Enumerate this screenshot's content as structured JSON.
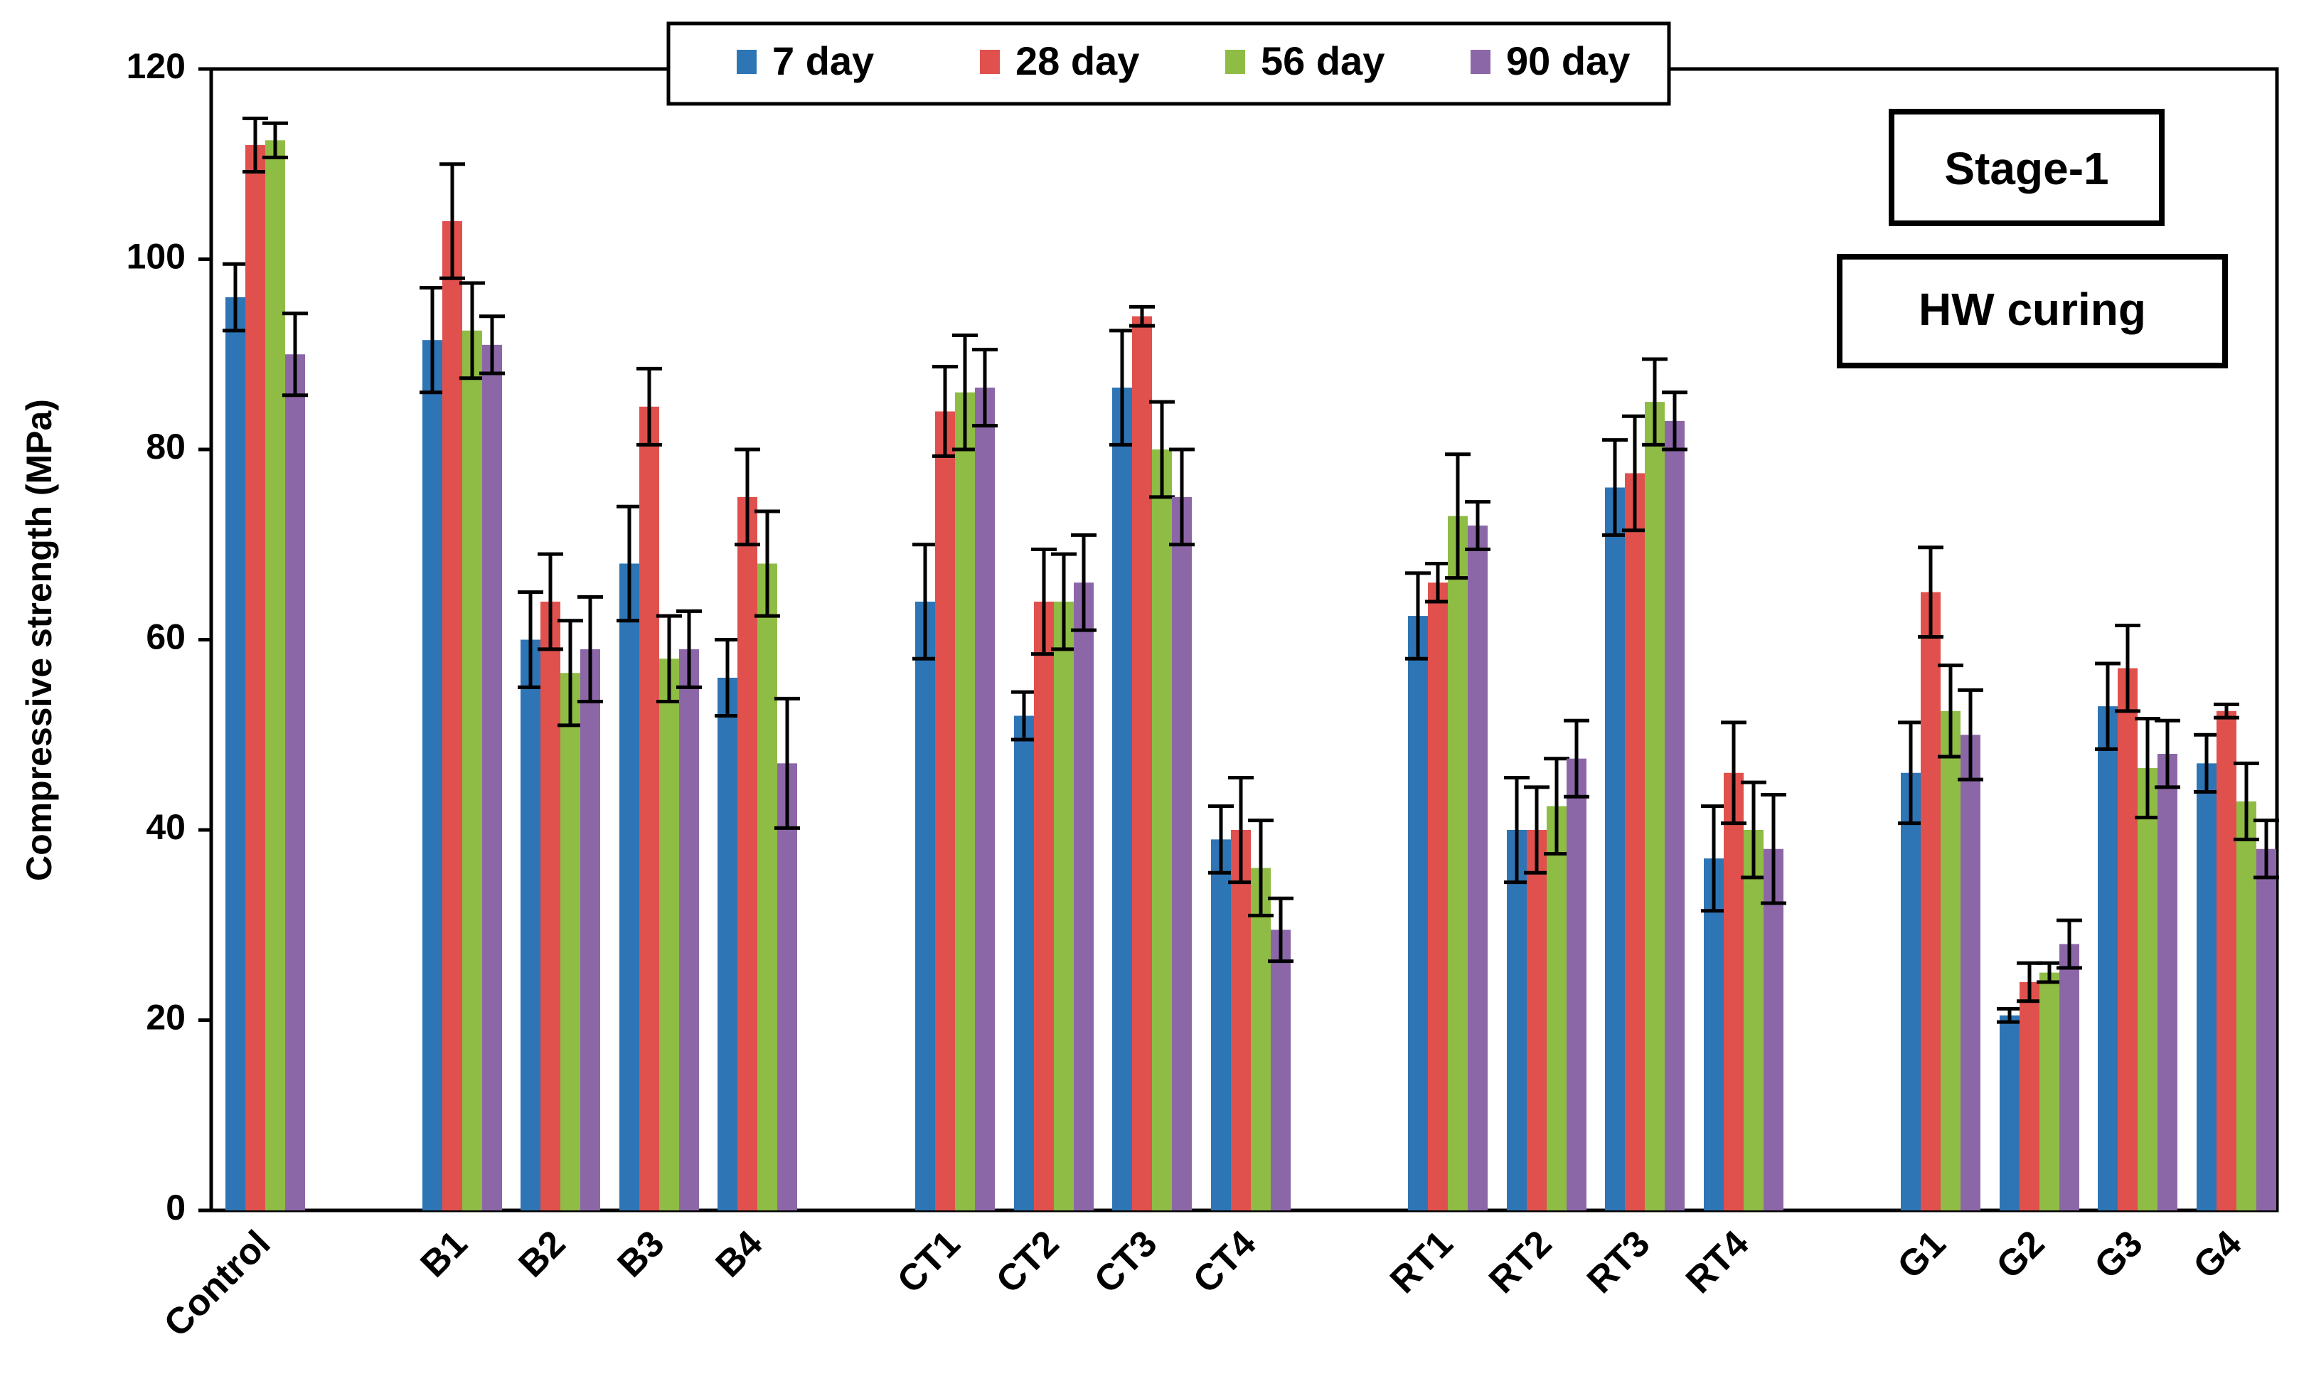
{
  "chart_data": {
    "type": "bar",
    "title": "",
    "xlabel": "",
    "ylabel": "Compressive strength (MPa)",
    "ylim": [
      0,
      120
    ],
    "yticks": [
      0,
      20,
      40,
      60,
      80,
      100,
      120
    ],
    "grid": false,
    "legend_position": "top-center",
    "annotations": [
      "Stage-1",
      "HW curing"
    ],
    "categories": [
      "Control",
      "B1",
      "B2",
      "B3",
      "B4",
      "CT1",
      "CT2",
      "CT3",
      "CT4",
      "RT1",
      "RT2",
      "RT3",
      "RT4",
      "G1",
      "G2",
      "G3",
      "G4"
    ],
    "series": [
      {
        "name": "7 day",
        "color": "#2E75B6",
        "values": [
          96,
          91.5,
          60,
          68,
          56,
          64,
          52,
          86.5,
          39,
          62.5,
          40,
          76,
          37,
          46,
          20.5,
          53,
          47
        ],
        "errors": [
          3.5,
          5.5,
          5,
          6,
          4,
          6,
          2.5,
          6,
          3.5,
          4.5,
          5.5,
          5,
          5.5,
          5.3,
          0.7,
          4.5,
          3
        ]
      },
      {
        "name": "28 day",
        "color": "#E0514E",
        "values": [
          112,
          104,
          64,
          84.5,
          75,
          84,
          64,
          94,
          40,
          66,
          40,
          77.5,
          46,
          65,
          24,
          57,
          52.5
        ],
        "errors": [
          2.8,
          6,
          5,
          4,
          5,
          4.7,
          5.5,
          1,
          5.5,
          2,
          4.5,
          6,
          5.3,
          4.7,
          2,
          4.5,
          0.7
        ]
      },
      {
        "name": "56 day",
        "color": "#8FBC45",
        "values": [
          112.5,
          92.5,
          56.5,
          58,
          68,
          86,
          64,
          80,
          36,
          73,
          42.5,
          85,
          40,
          52.5,
          25,
          46.5,
          43
        ],
        "errors": [
          1.8,
          5,
          5.5,
          4.5,
          5.5,
          6,
          5,
          5,
          5,
          6.5,
          5,
          4.5,
          5,
          4.8,
          1,
          5.2,
          4
        ]
      },
      {
        "name": "90 day",
        "color": "#8C67A8",
        "values": [
          90,
          91,
          59,
          59,
          47,
          86.5,
          66,
          75,
          29.5,
          72,
          47.5,
          83,
          38,
          50,
          28,
          48,
          38
        ],
        "errors": [
          4.3,
          3,
          5.5,
          4,
          6.8,
          4,
          5,
          5,
          3.3,
          2.5,
          4,
          3,
          5.7,
          4.7,
          2.5,
          3.5,
          3
        ]
      }
    ]
  }
}
